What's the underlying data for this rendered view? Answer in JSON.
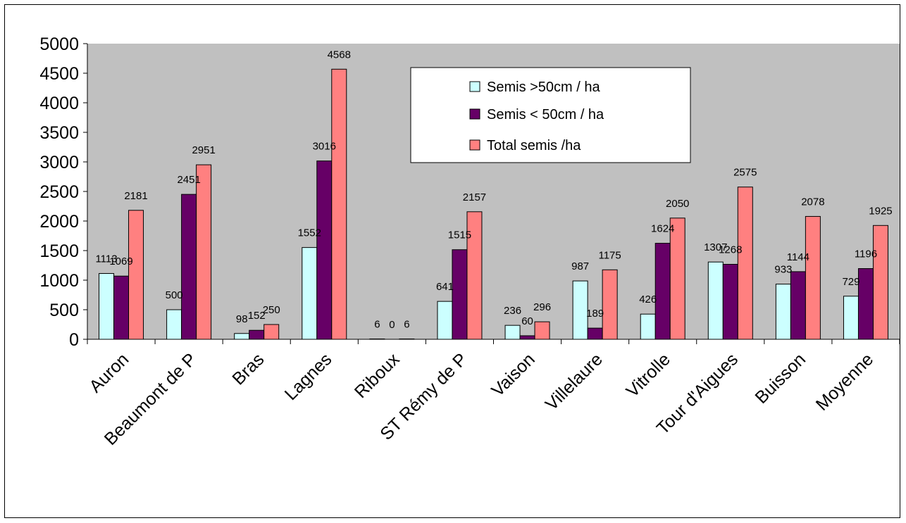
{
  "chart_data": {
    "type": "bar",
    "categories": [
      "Auron",
      "Beaumont de P",
      "Bras",
      "Lagnes",
      "Riboux",
      "ST Rémy de P",
      "Vaison",
      "Villelaure",
      "Vitrolle",
      "Tour d'Aigues",
      "Buisson",
      "Moyenne"
    ],
    "series": [
      {
        "name": "Semis >50cm / ha",
        "color": "#ccffff",
        "values": [
          1113,
          500,
          98,
          1552,
          6,
          641,
          236,
          987,
          426,
          1307,
          933,
          729
        ]
      },
      {
        "name": "Semis < 50cm / ha",
        "color": "#660066",
        "values": [
          1069,
          2451,
          152,
          3016,
          0,
          1515,
          60,
          189,
          1624,
          1268,
          1144,
          1196
        ]
      },
      {
        "name": "Total semis /ha",
        "color": "#ff8080",
        "values": [
          2181,
          2951,
          250,
          4568,
          6,
          2157,
          296,
          1175,
          2050,
          2575,
          2078,
          1925
        ]
      }
    ],
    "ylim": [
      0,
      5000
    ],
    "yticks": [
      "0",
      "500",
      "1000",
      "1500",
      "2000",
      "2500",
      "3000",
      "3500",
      "4000",
      "4500",
      "5000"
    ],
    "grid": false,
    "plot_background": "#c0c0c0",
    "legend_position": "top-right",
    "data_labels": true,
    "title": "",
    "xlabel": "",
    "ylabel": ""
  }
}
